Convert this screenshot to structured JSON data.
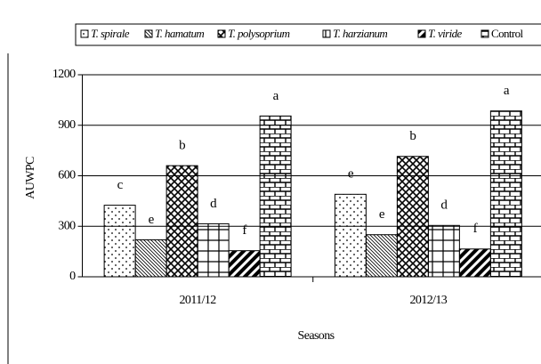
{
  "chart_data": {
    "type": "bar",
    "categories": [
      "2011/12",
      "2012/13"
    ],
    "x_label": "Seasons",
    "y_label": "AUWPC",
    "ylim": [
      0,
      1200
    ],
    "yticks": [
      0,
      300,
      600,
      900,
      1200
    ],
    "grid": true,
    "series": [
      {
        "name": "T. spirale",
        "color": "#000000",
        "values": [
          425,
          490
        ],
        "letters": [
          "c",
          "e"
        ]
      },
      {
        "name": "T. hamatum",
        "color": "#000000",
        "values": [
          220,
          250
        ],
        "letters": [
          "e",
          "e"
        ]
      },
      {
        "name": "T. polysoprium",
        "color": "#000000",
        "values": [
          660,
          715
        ],
        "letters": [
          "b",
          "b"
        ]
      },
      {
        "name": "T. harzianum",
        "color": "#000000",
        "values": [
          315,
          305
        ],
        "letters": [
          "d",
          "d"
        ]
      },
      {
        "name": "T. viride",
        "color": "#000000",
        "values": [
          155,
          165
        ],
        "letters": [
          "f",
          "f"
        ]
      },
      {
        "name": "Control",
        "color": "#000000",
        "values": [
          955,
          985
        ],
        "letters": [
          "a",
          "a"
        ]
      }
    ]
  }
}
